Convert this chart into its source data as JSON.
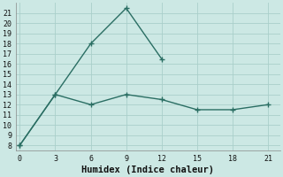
{
  "xlabel": "Humidex (Indice chaleur)",
  "line1_x": [
    0,
    3,
    6,
    9,
    12
  ],
  "line1_y": [
    8,
    13,
    18,
    21.5,
    16.5
  ],
  "line2_x": [
    0,
    3,
    6,
    9,
    12,
    15,
    18,
    21
  ],
  "line2_y": [
    8,
    13,
    12,
    13,
    12.5,
    11.5,
    11.5,
    12
  ],
  "line_color": "#2a6e63",
  "bg_color": "#cce8e4",
  "grid_color": "#aacfca",
  "ylim": [
    7.5,
    22
  ],
  "xlim": [
    -0.3,
    22
  ],
  "yticks": [
    8,
    9,
    10,
    11,
    12,
    13,
    14,
    15,
    16,
    17,
    18,
    19,
    20,
    21
  ],
  "xticks": [
    0,
    3,
    6,
    9,
    12,
    15,
    18,
    21
  ],
  "markersize": 3,
  "linewidth": 1.0,
  "tick_fontsize": 6,
  "xlabel_fontsize": 7.5
}
